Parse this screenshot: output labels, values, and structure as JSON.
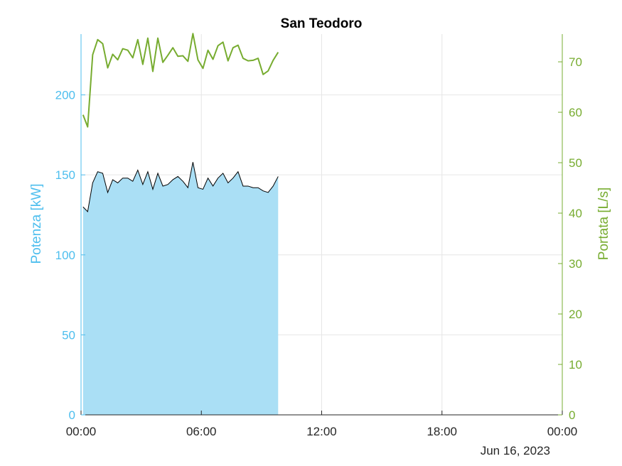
{
  "chart_data": {
    "type": "area+line",
    "title": "San Teodoro",
    "date_label": "Jun 16, 2023",
    "colors": {
      "left_axis": "#4dbeee",
      "right_axis": "#77ac30",
      "area_fill": "#aadff5",
      "area_edge": "#000000",
      "grid": "#e6e6e6"
    },
    "grid": true,
    "x": {
      "unit": "hours since 00:00 on Jun 16, 2023",
      "range": [
        0,
        24
      ],
      "ticks": [
        0,
        6,
        12,
        18,
        24
      ],
      "tick_labels": [
        "00:00",
        "06:00",
        "12:00",
        "18:00",
        "00:00"
      ]
    },
    "left_axis": {
      "label": "Potenza [kW]",
      "range": [
        0,
        238
      ],
      "ticks": [
        0,
        50,
        100,
        150,
        200
      ],
      "tick_labels": [
        "0",
        "50",
        "100",
        "150",
        "200"
      ]
    },
    "right_axis": {
      "label": "Portata [L/s]",
      "range": [
        0,
        75.5
      ],
      "ticks": [
        0,
        10,
        20,
        30,
        40,
        50,
        60,
        70
      ],
      "tick_labels": [
        "0",
        "10",
        "20",
        "30",
        "40",
        "50",
        "60",
        "70"
      ]
    },
    "series": [
      {
        "name": "Potenza",
        "axis": "left",
        "kind": "area",
        "x": [
          0.1,
          0.33,
          0.58,
          0.83,
          1.08,
          1.33,
          1.58,
          1.83,
          2.08,
          2.33,
          2.58,
          2.83,
          3.08,
          3.33,
          3.58,
          3.83,
          4.08,
          4.33,
          4.58,
          4.83,
          5.08,
          5.33,
          5.58,
          5.83,
          6.08,
          6.33,
          6.58,
          6.83,
          7.08,
          7.33,
          7.58,
          7.83,
          8.08,
          8.33,
          8.58,
          8.83,
          9.08,
          9.33,
          9.58,
          9.83
        ],
        "values": [
          130,
          127,
          145,
          152,
          151,
          139,
          147,
          145,
          148,
          148,
          146,
          153,
          144,
          152,
          141,
          151,
          143,
          144,
          147,
          149,
          146,
          142,
          158,
          142,
          141,
          148,
          143,
          148,
          151,
          145,
          148,
          152,
          143,
          143,
          142,
          142,
          140,
          139,
          143,
          149
        ]
      },
      {
        "name": "Portata",
        "axis": "right",
        "kind": "line",
        "x": [
          0.1,
          0.33,
          0.58,
          0.83,
          1.08,
          1.33,
          1.58,
          1.83,
          2.08,
          2.33,
          2.58,
          2.83,
          3.08,
          3.33,
          3.58,
          3.83,
          4.08,
          4.33,
          4.58,
          4.83,
          5.08,
          5.33,
          5.58,
          5.83,
          6.08,
          6.33,
          6.58,
          6.83,
          7.08,
          7.33,
          7.58,
          7.83,
          8.08,
          8.33,
          8.58,
          8.83,
          9.08,
          9.33,
          9.58,
          9.83
        ],
        "values": [
          59.5,
          57.1,
          71.4,
          74.4,
          73.6,
          68.8,
          71.5,
          70.4,
          72.6,
          72.3,
          70.8,
          74.4,
          69.5,
          74.7,
          68.1,
          74.7,
          69.9,
          71.3,
          72.8,
          71.1,
          71.2,
          70.1,
          75.6,
          70.4,
          68.7,
          72.3,
          70.5,
          73.2,
          73.9,
          70.2,
          72.8,
          73.3,
          70.7,
          70.2,
          70.3,
          70.7,
          67.5,
          68.2,
          70.3,
          71.9
        ]
      }
    ]
  }
}
